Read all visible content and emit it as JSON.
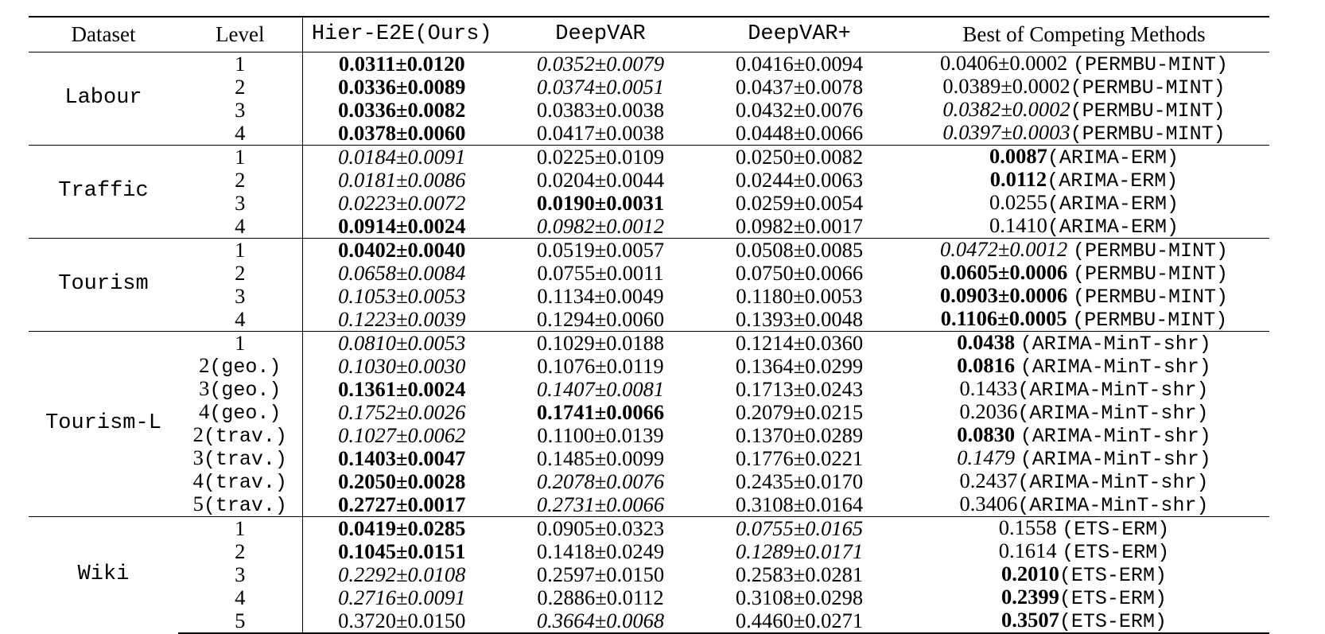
{
  "headers": {
    "dataset": "Dataset",
    "level": "Level",
    "hier": "Hier-E2E(Ours)",
    "deepvar": "DeepVAR",
    "deepvarplus": "DeepVAR+",
    "best": "Best of Competing Methods"
  },
  "groups": [
    {
      "dataset": "Labour",
      "rows": [
        {
          "level": "1",
          "hier": {
            "v": "0.0311±0.0120",
            "s": "b"
          },
          "deepvar": {
            "v": "0.0352±0.0079",
            "s": "i"
          },
          "deepvarplus": {
            "v": "0.0416±0.0094",
            "s": ""
          },
          "best": {
            "v": "0.0406±0.0002 ",
            "s": "",
            "m": "(PERMBU-MINT)"
          }
        },
        {
          "level": "2",
          "hier": {
            "v": "0.0336±0.0089",
            "s": "b"
          },
          "deepvar": {
            "v": "0.0374±0.0051",
            "s": "i"
          },
          "deepvarplus": {
            "v": "0.0437±0.0078",
            "s": ""
          },
          "best": {
            "v": "0.0389±0.0002",
            "s": "",
            "m": "(PERMBU-MINT)"
          }
        },
        {
          "level": "3",
          "hier": {
            "v": "0.0336±0.0082",
            "s": "b"
          },
          "deepvar": {
            "v": "0.0383±0.0038",
            "s": ""
          },
          "deepvarplus": {
            "v": "0.0432±0.0076",
            "s": ""
          },
          "best": {
            "v": "0.0382±0.0002",
            "s": "i",
            "m": "(PERMBU-MINT)"
          }
        },
        {
          "level": "4",
          "hier": {
            "v": "0.0378±0.0060",
            "s": "b"
          },
          "deepvar": {
            "v": "0.0417±0.0038",
            "s": ""
          },
          "deepvarplus": {
            "v": "0.0448±0.0066",
            "s": ""
          },
          "best": {
            "v": "0.0397±0.0003",
            "s": "i",
            "m": "(PERMBU-MINT)"
          }
        }
      ]
    },
    {
      "dataset": "Traffic",
      "rows": [
        {
          "level": "1",
          "hier": {
            "v": "0.0184±0.0091",
            "s": "i"
          },
          "deepvar": {
            "v": "0.0225±0.0109",
            "s": ""
          },
          "deepvarplus": {
            "v": "0.0250±0.0082",
            "s": ""
          },
          "best": {
            "v": "0.0087",
            "s": "b",
            "m": "(ARIMA-ERM)"
          }
        },
        {
          "level": "2",
          "hier": {
            "v": "0.0181±0.0086",
            "s": "i"
          },
          "deepvar": {
            "v": "0.0204±0.0044",
            "s": ""
          },
          "deepvarplus": {
            "v": "0.0244±0.0063",
            "s": ""
          },
          "best": {
            "v": "0.0112",
            "s": "b",
            "m": "(ARIMA-ERM)"
          }
        },
        {
          "level": "3",
          "hier": {
            "v": "0.0223±0.0072",
            "s": "i"
          },
          "deepvar": {
            "v": "0.0190±0.0031",
            "s": "b"
          },
          "deepvarplus": {
            "v": "0.0259±0.0054",
            "s": ""
          },
          "best": {
            "v": "0.0255",
            "s": "",
            "m": "(ARIMA-ERM)"
          }
        },
        {
          "level": "4",
          "hier": {
            "v": "0.0914±0.0024",
            "s": "b"
          },
          "deepvar": {
            "v": "0.0982±0.0012",
            "s": "i"
          },
          "deepvarplus": {
            "v": "0.0982±0.0017",
            "s": ""
          },
          "best": {
            "v": "0.1410",
            "s": "",
            "m": "(ARIMA-ERM)"
          }
        }
      ]
    },
    {
      "dataset": "Tourism",
      "rows": [
        {
          "level": "1",
          "hier": {
            "v": "0.0402±0.0040",
            "s": "b"
          },
          "deepvar": {
            "v": "0.0519±0.0057",
            "s": ""
          },
          "deepvarplus": {
            "v": "0.0508±0.0085",
            "s": ""
          },
          "best": {
            "v": "0.0472±0.0012 ",
            "s": "i",
            "m": "(PERMBU-MINT)"
          }
        },
        {
          "level": "2",
          "hier": {
            "v": "0.0658±0.0084",
            "s": "i"
          },
          "deepvar": {
            "v": "0.0755±0.0011",
            "s": ""
          },
          "deepvarplus": {
            "v": "0.0750±0.0066",
            "s": ""
          },
          "best": {
            "v": "0.0605±0.0006 ",
            "s": "b",
            "m": "(PERMBU-MINT)"
          }
        },
        {
          "level": "3",
          "hier": {
            "v": "0.1053±0.0053",
            "s": "i"
          },
          "deepvar": {
            "v": "0.1134±0.0049",
            "s": ""
          },
          "deepvarplus": {
            "v": "0.1180±0.0053",
            "s": ""
          },
          "best": {
            "v": "0.0903±0.0006 ",
            "s": "b",
            "m": "(PERMBU-MINT)"
          }
        },
        {
          "level": "4",
          "hier": {
            "v": "0.1223±0.0039",
            "s": "i"
          },
          "deepvar": {
            "v": "0.1294±0.0060",
            "s": ""
          },
          "deepvarplus": {
            "v": "0.1393±0.0048",
            "s": ""
          },
          "best": {
            "v": "0.1106±0.0005 ",
            "s": "b",
            "m": "(PERMBU-MINT)"
          }
        }
      ]
    },
    {
      "dataset": "Tourism-L",
      "rows": [
        {
          "level": "1",
          "levelMono": "",
          "hier": {
            "v": "0.0810±0.0053",
            "s": "i"
          },
          "deepvar": {
            "v": "0.1029±0.0188",
            "s": ""
          },
          "deepvarplus": {
            "v": "0.1214±0.0360",
            "s": ""
          },
          "best": {
            "v": "0.0438 ",
            "s": "b",
            "m": "(ARIMA-MinT-shr)"
          }
        },
        {
          "level": "2",
          "levelMono": "(geo.)",
          "hier": {
            "v": "0.1030±0.0030",
            "s": "i"
          },
          "deepvar": {
            "v": "0.1076±0.0119",
            "s": ""
          },
          "deepvarplus": {
            "v": "0.1364±0.0299",
            "s": ""
          },
          "best": {
            "v": "0.0816 ",
            "s": "b",
            "m": "(ARIMA-MinT-shr)"
          }
        },
        {
          "level": "3",
          "levelMono": "(geo.)",
          "hier": {
            "v": "0.1361±0.0024",
            "s": "b"
          },
          "deepvar": {
            "v": "0.1407±0.0081",
            "s": "i"
          },
          "deepvarplus": {
            "v": "0.1713±0.0243",
            "s": ""
          },
          "best": {
            "v": "0.1433",
            "s": "",
            "m": "(ARIMA-MinT-shr)"
          }
        },
        {
          "level": "4",
          "levelMono": "(geo.)",
          "hier": {
            "v": "0.1752±0.0026",
            "s": "i"
          },
          "deepvar": {
            "v": "0.1741±0.0066",
            "s": "b"
          },
          "deepvarplus": {
            "v": "0.2079±0.0215",
            "s": ""
          },
          "best": {
            "v": "0.2036",
            "s": "",
            "m": "(ARIMA-MinT-shr)"
          }
        },
        {
          "level": "2",
          "levelMono": "(trav.)",
          "hier": {
            "v": "0.1027±0.0062",
            "s": "i"
          },
          "deepvar": {
            "v": "0.1100±0.0139",
            "s": ""
          },
          "deepvarplus": {
            "v": "0.1370±0.0289",
            "s": ""
          },
          "best": {
            "v": "0.0830 ",
            "s": "b",
            "m": "(ARIMA-MinT-shr)"
          }
        },
        {
          "level": "3",
          "levelMono": "(trav.)",
          "hier": {
            "v": "0.1403±0.0047",
            "s": "b"
          },
          "deepvar": {
            "v": "0.1485±0.0099",
            "s": ""
          },
          "deepvarplus": {
            "v": "0.1776±0.0221",
            "s": ""
          },
          "best": {
            "v": "0.1479 ",
            "s": "i",
            "m": "(ARIMA-MinT-shr)"
          }
        },
        {
          "level": "4",
          "levelMono": "(trav.)",
          "hier": {
            "v": "0.2050±0.0028",
            "s": "b"
          },
          "deepvar": {
            "v": "0.2078±0.0076",
            "s": "i"
          },
          "deepvarplus": {
            "v": "0.2435±0.0170",
            "s": ""
          },
          "best": {
            "v": "0.2437",
            "s": "",
            "m": "(ARIMA-MinT-shr)"
          }
        },
        {
          "level": "5",
          "levelMono": "(trav.)",
          "hier": {
            "v": "0.2727±0.0017",
            "s": "b"
          },
          "deepvar": {
            "v": "0.2731±0.0066",
            "s": "i"
          },
          "deepvarplus": {
            "v": "0.3108±0.0164",
            "s": ""
          },
          "best": {
            "v": "0.3406",
            "s": "",
            "m": "(ARIMA-MinT-shr)"
          }
        }
      ]
    },
    {
      "dataset": "Wiki",
      "rows": [
        {
          "level": "1",
          "hier": {
            "v": "0.0419±0.0285",
            "s": "b"
          },
          "deepvar": {
            "v": "0.0905±0.0323",
            "s": ""
          },
          "deepvarplus": {
            "v": "0.0755±0.0165",
            "s": "i"
          },
          "best": {
            "v": "0.1558 ",
            "s": "",
            "m": "(ETS-ERM)"
          }
        },
        {
          "level": "2",
          "hier": {
            "v": "0.1045±0.0151",
            "s": "b"
          },
          "deepvar": {
            "v": "0.1418±0.0249",
            "s": ""
          },
          "deepvarplus": {
            "v": "0.1289±0.0171",
            "s": "i"
          },
          "best": {
            "v": "0.1614 ",
            "s": "",
            "m": "(ETS-ERM)"
          }
        },
        {
          "level": "3",
          "hier": {
            "v": "0.2292±0.0108",
            "s": "i"
          },
          "deepvar": {
            "v": "0.2597±0.0150",
            "s": ""
          },
          "deepvarplus": {
            "v": "0.2583±0.0281",
            "s": ""
          },
          "best": {
            "v": "0.2010",
            "s": "b",
            "m": "(ETS-ERM)"
          }
        },
        {
          "level": "4",
          "hier": {
            "v": "0.2716±0.0091",
            "s": "i"
          },
          "deepvar": {
            "v": "0.2886±0.0112",
            "s": ""
          },
          "deepvarplus": {
            "v": "0.3108±0.0298",
            "s": ""
          },
          "best": {
            "v": "0.2399",
            "s": "b",
            "m": "(ETS-ERM)"
          }
        },
        {
          "level": "5",
          "hier": {
            "v": "0.3720±0.0150",
            "s": ""
          },
          "deepvar": {
            "v": "0.3664±0.0068",
            "s": "i"
          },
          "deepvarplus": {
            "v": "0.4460±0.0271",
            "s": ""
          },
          "best": {
            "v": "0.3507",
            "s": "b",
            "m": "(ETS-ERM)"
          }
        }
      ]
    }
  ]
}
